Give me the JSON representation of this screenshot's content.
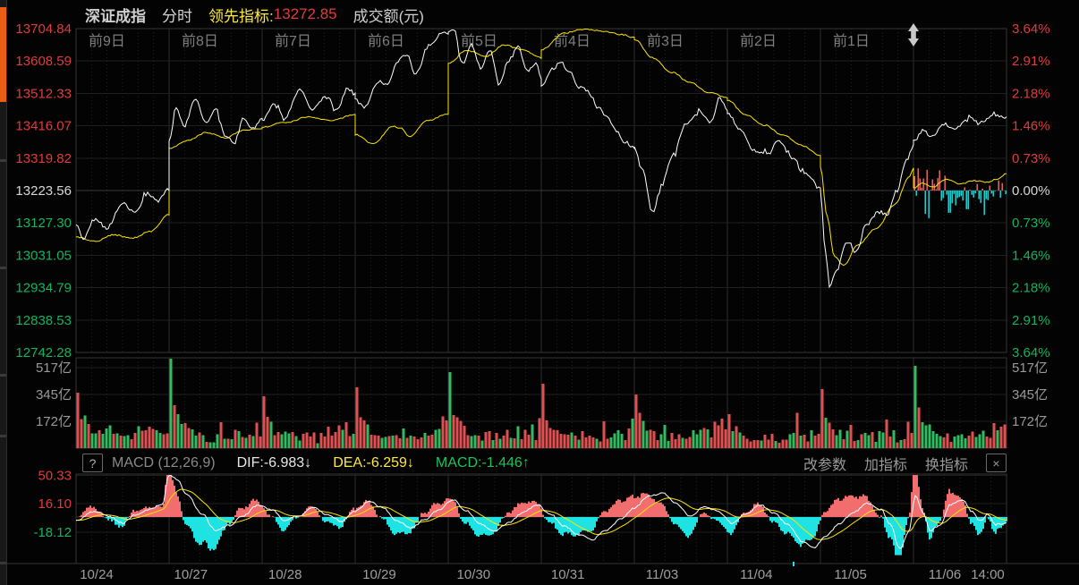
{
  "colors": {
    "up": "#e23b3b",
    "down": "#10b55f",
    "flat": "#d8d8d8",
    "gray": "#8a8a8a",
    "gray_dim": "#7e7e7e",
    "date_gray": "#9f9f9f",
    "yellow": "#ffe93d",
    "line_white": "#ffffff",
    "line_yellow": "#ffe400",
    "bar_red": "#e05050",
    "bar_green": "#33bb60",
    "macd_red": "#f26d6d",
    "cyan": "#1fe2e2",
    "dif_white": "#e8e8e8",
    "macd_green": "#1fc15c",
    "orange": "#ea5d15"
  },
  "header": {
    "symbol": "深证成指",
    "mode": "分时",
    "lead_label": "领先指标:",
    "lead_value": "13272.85",
    "turnover_label": "成交额(元)"
  },
  "price_axis_left": [
    {
      "t": "13704.84",
      "c": "up"
    },
    {
      "t": "13608.59",
      "c": "up"
    },
    {
      "t": "13512.33",
      "c": "up"
    },
    {
      "t": "13416.07",
      "c": "up"
    },
    {
      "t": "13319.82",
      "c": "up"
    },
    {
      "t": "13223.56",
      "c": "flat"
    },
    {
      "t": "13127.30",
      "c": "down"
    },
    {
      "t": "13031.05",
      "c": "down"
    },
    {
      "t": "12934.79",
      "c": "down"
    },
    {
      "t": "12838.53",
      "c": "down"
    },
    {
      "t": "12742.28",
      "c": "down"
    }
  ],
  "price_axis_right": [
    {
      "t": "3.64%",
      "c": "up"
    },
    {
      "t": "2.91%",
      "c": "up"
    },
    {
      "t": "2.18%",
      "c": "up"
    },
    {
      "t": "1.46%",
      "c": "up"
    },
    {
      "t": "0.73%",
      "c": "up"
    },
    {
      "t": "0.00%",
      "c": "flat"
    },
    {
      "t": "0.73%",
      "c": "down"
    },
    {
      "t": "1.46%",
      "c": "down"
    },
    {
      "t": "2.18%",
      "c": "down"
    },
    {
      "t": "2.91%",
      "c": "down"
    },
    {
      "t": "3.64%",
      "c": "down"
    }
  ],
  "volume_axis": [
    "517亿",
    "345亿",
    "172亿"
  ],
  "day_labels": [
    "前9日",
    "前8日",
    "前7日",
    "前6日",
    "前5日",
    "前4日",
    "前3日",
    "前2日",
    "前1日"
  ],
  "dates": [
    "10/24",
    "10/27",
    "10/28",
    "10/29",
    "10/30",
    "10/31",
    "11/03",
    "11/04",
    "11/05",
    "11/06"
  ],
  "last_time": "14:00",
  "macd_bar": {
    "help": "?",
    "name": "MACD (12,26,9)",
    "dif": "DIF:-6.983↓",
    "dea": "DEA:-6.259↓",
    "macd": "MACD:-1.446↑",
    "btn_param": "改参数",
    "btn_add": "加指标",
    "btn_switch": "换指标",
    "close": "×"
  },
  "macd_axis": [
    {
      "t": "50.33",
      "c": "up"
    },
    {
      "t": "16.10",
      "c": "up"
    },
    {
      "t": "-18.12",
      "c": "down"
    }
  ],
  "chart_data": {
    "type": "line",
    "title": "深证成指 分时 (10日)",
    "seed": 12,
    "days": 10,
    "price_range": {
      "high": 13704.84,
      "low": 12742.28,
      "prev_close": 13223.56
    },
    "percent_range": 3.64,
    "white_line_days": [
      [
        [
          0,
          13120
        ],
        [
          0.08,
          13082
        ],
        [
          0.2,
          13140
        ],
        [
          0.33,
          13112
        ],
        [
          0.5,
          13185
        ],
        [
          0.63,
          13158
        ],
        [
          0.78,
          13218
        ],
        [
          0.88,
          13192
        ],
        [
          1,
          13228
        ]
      ],
      [
        [
          0,
          13368
        ],
        [
          0.07,
          13472
        ],
        [
          0.16,
          13415
        ],
        [
          0.28,
          13492
        ],
        [
          0.4,
          13428
        ],
        [
          0.5,
          13468
        ],
        [
          0.6,
          13388
        ],
        [
          0.7,
          13362
        ],
        [
          0.8,
          13438
        ],
        [
          0.9,
          13408
        ],
        [
          1,
          13438
        ]
      ],
      [
        [
          0,
          13432
        ],
        [
          0.12,
          13478
        ],
        [
          0.25,
          13442
        ],
        [
          0.4,
          13522
        ],
        [
          0.55,
          13465
        ],
        [
          0.68,
          13502
        ],
        [
          0.8,
          13462
        ],
        [
          0.92,
          13526
        ],
        [
          1,
          13512
        ]
      ],
      [
        [
          0,
          13498
        ],
        [
          0.1,
          13472
        ],
        [
          0.25,
          13548
        ],
        [
          0.35,
          13538
        ],
        [
          0.45,
          13608
        ],
        [
          0.55,
          13628
        ],
        [
          0.65,
          13572
        ],
        [
          0.8,
          13655
        ],
        [
          0.92,
          13688
        ],
        [
          1,
          13692
        ]
      ],
      [
        [
          0,
          13698
        ],
        [
          0.06,
          13704
        ],
        [
          0.15,
          13598
        ],
        [
          0.25,
          13658
        ],
        [
          0.35,
          13588
        ],
        [
          0.45,
          13642
        ],
        [
          0.55,
          13538
        ],
        [
          0.65,
          13612
        ],
        [
          0.75,
          13652
        ],
        [
          0.85,
          13578
        ],
        [
          0.95,
          13602
        ],
        [
          1,
          13556
        ]
      ],
      [
        [
          0,
          13532
        ],
        [
          0.1,
          13578
        ],
        [
          0.2,
          13602
        ],
        [
          0.3,
          13578
        ],
        [
          0.4,
          13532
        ],
        [
          0.5,
          13518
        ],
        [
          0.6,
          13472
        ],
        [
          0.7,
          13448
        ],
        [
          0.8,
          13402
        ],
        [
          0.9,
          13368
        ],
        [
          1,
          13350
        ]
      ],
      [
        [
          0,
          13352
        ],
        [
          0.08,
          13288
        ],
        [
          0.2,
          13162
        ],
        [
          0.3,
          13248
        ],
        [
          0.42,
          13332
        ],
        [
          0.55,
          13422
        ],
        [
          0.7,
          13458
        ],
        [
          0.82,
          13428
        ],
        [
          0.92,
          13498
        ],
        [
          1,
          13462
        ]
      ],
      [
        [
          0,
          13455
        ],
        [
          0.15,
          13398
        ],
        [
          0.3,
          13338
        ],
        [
          0.45,
          13332
        ],
        [
          0.55,
          13372
        ],
        [
          0.7,
          13318
        ],
        [
          0.85,
          13272
        ],
        [
          1,
          13228
        ]
      ],
      [
        [
          0,
          13222
        ],
        [
          0.05,
          13052
        ],
        [
          0.1,
          12938
        ],
        [
          0.18,
          12992
        ],
        [
          0.28,
          13072
        ],
        [
          0.38,
          13042
        ],
        [
          0.5,
          13122
        ],
        [
          0.62,
          13162
        ],
        [
          0.72,
          13152
        ],
        [
          0.82,
          13222
        ],
        [
          0.92,
          13312
        ],
        [
          1,
          13358
        ]
      ],
      [
        [
          0,
          13362
        ],
        [
          0.1,
          13402
        ],
        [
          0.2,
          13382
        ],
        [
          0.32,
          13422
        ],
        [
          0.45,
          13408
        ],
        [
          0.6,
          13438
        ],
        [
          0.72,
          13422
        ],
        [
          0.85,
          13448
        ],
        [
          1,
          13438
        ]
      ]
    ],
    "yellow_line_days": [
      [
        [
          0,
          13085
        ],
        [
          0.2,
          13072
        ],
        [
          0.4,
          13092
        ],
        [
          0.6,
          13082
        ],
        [
          0.8,
          13102
        ],
        [
          1,
          13152
        ]
      ],
      [
        [
          0,
          13348
        ],
        [
          0.2,
          13372
        ],
        [
          0.4,
          13396
        ],
        [
          0.6,
          13380
        ],
        [
          0.8,
          13402
        ],
        [
          1,
          13408
        ]
      ],
      [
        [
          0,
          13412
        ],
        [
          0.25,
          13426
        ],
        [
          0.5,
          13442
        ],
        [
          0.75,
          13432
        ],
        [
          1,
          13450
        ]
      ],
      [
        [
          0,
          13390
        ],
        [
          0.2,
          13362
        ],
        [
          0.4,
          13414
        ],
        [
          0.5,
          13408
        ],
        [
          0.58,
          13384
        ],
        [
          0.78,
          13432
        ],
        [
          1,
          13452
        ]
      ],
      [
        [
          0,
          13602
        ],
        [
          0.2,
          13640
        ],
        [
          0.4,
          13622
        ],
        [
          0.6,
          13656
        ],
        [
          0.8,
          13642
        ],
        [
          1,
          13618
        ]
      ],
      [
        [
          0,
          13642
        ],
        [
          0.25,
          13692
        ],
        [
          0.45,
          13703
        ],
        [
          0.65,
          13698
        ],
        [
          0.85,
          13688
        ],
        [
          1,
          13678
        ]
      ],
      [
        [
          0,
          13672
        ],
        [
          0.2,
          13618
        ],
        [
          0.4,
          13575
        ],
        [
          0.6,
          13545
        ],
        [
          0.8,
          13515
        ],
        [
          1,
          13500
        ]
      ],
      [
        [
          0,
          13492
        ],
        [
          0.2,
          13448
        ],
        [
          0.4,
          13418
        ],
        [
          0.6,
          13388
        ],
        [
          0.8,
          13358
        ],
        [
          1,
          13328
        ]
      ],
      [
        [
          0,
          13295
        ],
        [
          0.07,
          13148
        ],
        [
          0.15,
          13028
        ],
        [
          0.25,
          13000
        ],
        [
          0.4,
          13062
        ],
        [
          0.6,
          13112
        ],
        [
          0.8,
          13182
        ],
        [
          0.95,
          13262
        ],
        [
          1,
          13290
        ]
      ],
      [
        [
          0,
          13230
        ],
        [
          0.1,
          13246
        ],
        [
          0.2,
          13233
        ],
        [
          0.35,
          13256
        ],
        [
          0.5,
          13243
        ],
        [
          0.65,
          13253
        ],
        [
          0.8,
          13248
        ],
        [
          0.9,
          13258
        ],
        [
          1,
          13273
        ]
      ]
    ],
    "lead_bar_spikes_pct": [
      {
        "f": 0.16,
        "v": -0.62
      },
      {
        "f": 0.38,
        "v": -0.5
      },
      {
        "f": 0.58,
        "v": -0.42
      },
      {
        "f": 0.76,
        "v": -0.55
      }
    ],
    "volume_open_spikes": [
      {
        "h": 0.62,
        "c": "r"
      },
      {
        "h": 1.0,
        "c": "g"
      },
      {
        "h": 0.58,
        "c": "r"
      },
      {
        "h": 0.68,
        "c": "r"
      },
      {
        "h": 0.85,
        "c": "g"
      },
      {
        "h": 0.72,
        "c": "r"
      },
      {
        "h": 0.6,
        "c": "r"
      },
      {
        "h": 0.38,
        "c": "r"
      },
      {
        "h": 0.66,
        "c": "r"
      },
      {
        "h": 0.92,
        "c": "g"
      }
    ],
    "macd_dif_anchors": [
      [
        0,
        -4
      ],
      [
        0.02,
        7
      ],
      [
        0.035,
        1
      ],
      [
        0.05,
        -7
      ],
      [
        0.065,
        3
      ],
      [
        0.08,
        10
      ],
      [
        0.093,
        16
      ],
      [
        0.1,
        52
      ],
      [
        0.108,
        46
      ],
      [
        0.12,
        26
      ],
      [
        0.135,
        4
      ],
      [
        0.15,
        -16
      ],
      [
        0.165,
        -10
      ],
      [
        0.18,
        2
      ],
      [
        0.195,
        14
      ],
      [
        0.21,
        9
      ],
      [
        0.225,
        -4
      ],
      [
        0.24,
        2
      ],
      [
        0.255,
        11
      ],
      [
        0.27,
        3
      ],
      [
        0.285,
        -5
      ],
      [
        0.3,
        7
      ],
      [
        0.315,
        19
      ],
      [
        0.33,
        11
      ],
      [
        0.345,
        -5
      ],
      [
        0.36,
        -13
      ],
      [
        0.375,
        -3
      ],
      [
        0.39,
        9
      ],
      [
        0.405,
        21
      ],
      [
        0.42,
        7
      ],
      [
        0.435,
        -9
      ],
      [
        0.45,
        -17
      ],
      [
        0.465,
        -7
      ],
      [
        0.48,
        5
      ],
      [
        0.495,
        15
      ],
      [
        0.51,
        3
      ],
      [
        0.525,
        -11
      ],
      [
        0.54,
        -21
      ],
      [
        0.555,
        -27
      ],
      [
        0.57,
        -16
      ],
      [
        0.585,
        -3
      ],
      [
        0.6,
        11
      ],
      [
        0.615,
        25
      ],
      [
        0.63,
        29
      ],
      [
        0.645,
        16
      ],
      [
        0.66,
        1
      ],
      [
        0.675,
        13
      ],
      [
        0.69,
        7
      ],
      [
        0.705,
        -7
      ],
      [
        0.72,
        3
      ],
      [
        0.735,
        15
      ],
      [
        0.75,
        5
      ],
      [
        0.765,
        -9
      ],
      [
        0.78,
        -29
      ],
      [
        0.793,
        -37
      ],
      [
        0.806,
        -23
      ],
      [
        0.82,
        -8
      ],
      [
        0.835,
        5
      ],
      [
        0.85,
        17
      ],
      [
        0.865,
        9
      ],
      [
        0.875,
        -8
      ],
      [
        0.885,
        -38
      ],
      [
        0.895,
        -18
      ],
      [
        0.902,
        26
      ],
      [
        0.91,
        6
      ],
      [
        0.918,
        -16
      ],
      [
        0.928,
        -10
      ],
      [
        0.94,
        15
      ],
      [
        0.952,
        21
      ],
      [
        0.963,
        7
      ],
      [
        0.972,
        -5
      ],
      [
        0.98,
        3
      ],
      [
        0.988,
        -9
      ],
      [
        1,
        -7
      ]
    ],
    "macd_axis_values": [
      50.33,
      16.1,
      -18.12
    ],
    "macd_last": {
      "dif": -6.983,
      "dea": -6.259,
      "macd": -1.446
    },
    "volume_axis_values": [
      517,
      345,
      172
    ]
  }
}
